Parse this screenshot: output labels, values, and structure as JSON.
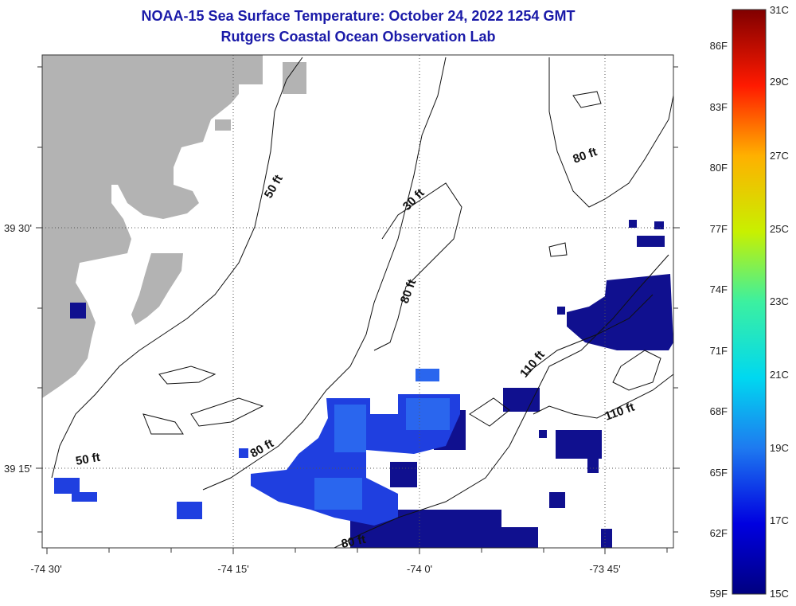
{
  "title": {
    "line1": "NOAA-15 Sea Surface Temperature:  October 24, 2022 1254 GMT",
    "line2": "Rutgers Coastal Ocean Observation Lab"
  },
  "colors": {
    "land": "#b3b3b3",
    "dark_blue": "#10108f",
    "mid_blue": "#1f3fe0",
    "light_blue": "#2a66ee",
    "grid": "#555555"
  },
  "axes": {
    "lon_ticks": [
      "-74 30'",
      "-74 15'",
      "-74 0'",
      "-73 45'"
    ],
    "lat_ticks": [
      "39 30'",
      "39 15'"
    ]
  },
  "contour_labels": [
    "50 ft",
    "30 ft",
    "80 ft",
    "80 ft",
    "110 ft",
    "110 ft",
    "80 ft",
    "50 ft",
    "80 ft"
  ],
  "colorbar": {
    "min_c": "15C",
    "max_c": "31C",
    "celsius_labels": [
      "31C",
      "29C",
      "27C",
      "25C",
      "23C",
      "21C",
      "19C",
      "17C",
      "15C"
    ],
    "fahrenheit_labels": [
      "86F",
      "83F",
      "80F",
      "77F",
      "74F",
      "71F",
      "68F",
      "65F",
      "62F",
      "59F"
    ]
  }
}
